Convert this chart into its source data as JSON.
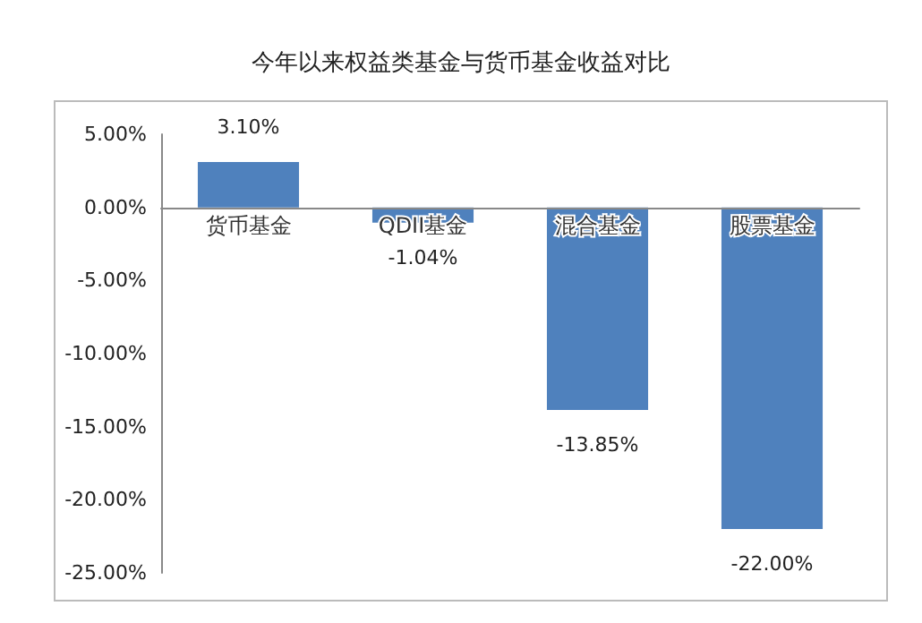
{
  "chart_data": {
    "type": "bar",
    "title": "今年以来权益类基金与货币基金收益对比",
    "categories": [
      "货币基金",
      "QDII基金",
      "混合基金",
      "股票基金"
    ],
    "values": [
      3.1,
      -1.04,
      -13.85,
      -22.0
    ],
    "value_labels": [
      "3.10%",
      "-1.04%",
      "-13.85%",
      "-22.00%"
    ],
    "color": "#4f81bd",
    "ylim": [
      -25,
      5
    ],
    "yticks": [
      {
        "value": -25,
        "label": "-25.00%"
      },
      {
        "value": -20,
        "label": "-20.00%"
      },
      {
        "value": -15,
        "label": "-15.00%"
      },
      {
        "value": -10,
        "label": "-10.00%"
      },
      {
        "value": -5,
        "label": "-5.00%"
      },
      {
        "value": 0,
        "label": "0.00%"
      },
      {
        "value": 5,
        "label": "5.00%"
      }
    ],
    "grid": false
  }
}
